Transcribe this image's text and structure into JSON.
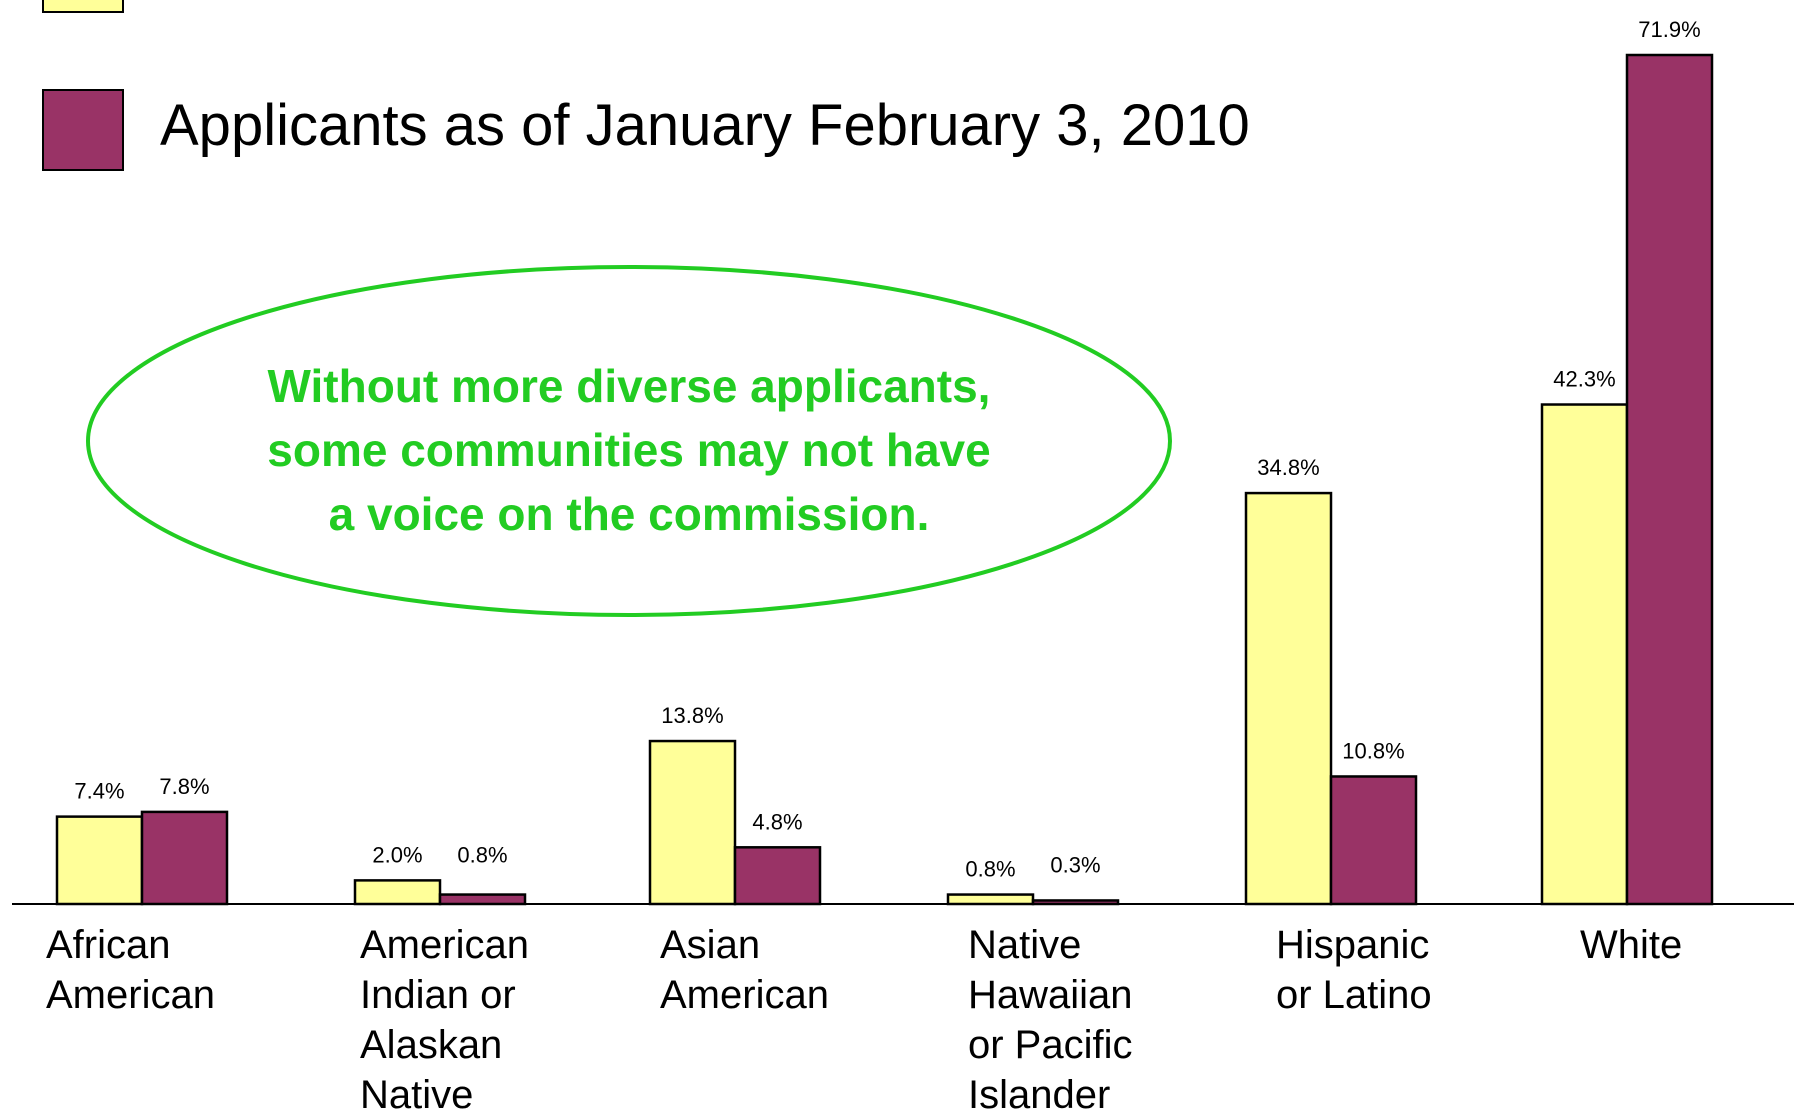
{
  "legend": {
    "items": [
      {
        "label": "",
        "color": "#ffff99"
      },
      {
        "label": "Applicants as of January February 3, 2010",
        "color": "#993366"
      }
    ]
  },
  "callout": {
    "lines": [
      "Without more diverse applicants,",
      "some communities may not have",
      "a voice on the commission."
    ],
    "color": "#22cc22"
  },
  "chart_data": {
    "type": "bar",
    "categories": [
      [
        "African",
        "American"
      ],
      [
        "American",
        "Indian or",
        "Alaskan",
        "Native"
      ],
      [
        "Asian",
        "American"
      ],
      [
        "Native",
        "Hawaiian",
        "or Pacific",
        "Islander"
      ],
      [
        "Hispanic",
        "or Latino"
      ],
      [
        "White"
      ]
    ],
    "series": [
      {
        "color": "#ffff99",
        "values": [
          7.4,
          2.0,
          13.8,
          0.8,
          34.8,
          42.3
        ],
        "labels": [
          "7.4%",
          "2.0%",
          "13.8%",
          "0.8%",
          "34.8%",
          "42.3%"
        ]
      },
      {
        "name": "Applicants as of January February 3, 2010",
        "color": "#993366",
        "values": [
          7.8,
          0.8,
          4.8,
          0.3,
          10.8,
          71.9
        ],
        "labels": [
          "7.8%",
          "0.8%",
          "4.8%",
          "0.3%",
          "10.8%",
          "71.9%"
        ]
      }
    ],
    "ylim": [
      0,
      80
    ],
    "grid": false,
    "legend_position": "top-left"
  }
}
